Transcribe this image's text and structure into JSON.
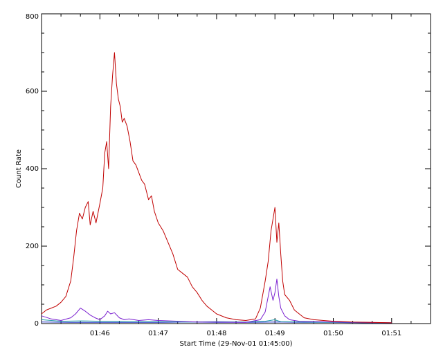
{
  "chart_data": {
    "type": "line",
    "title": "",
    "xlabel": "Start Time (29-Nov-01 01:45:00)",
    "ylabel": "Count Rate",
    "x_unit": "time (HH:MM, 29-Nov-01)",
    "xlim": [
      "01:45:00",
      "01:51:40"
    ],
    "ylim": [
      0,
      800
    ],
    "y_ticks": [
      0,
      200,
      400,
      600,
      800
    ],
    "x_ticks": [
      "01:46",
      "01:47",
      "01:48",
      "01:49",
      "01:50",
      "01:51"
    ],
    "grid": false,
    "series": [
      {
        "color": "#c00000",
        "points": [
          [
            "01:45:00",
            25
          ],
          [
            "01:45:05",
            35
          ],
          [
            "01:45:10",
            40
          ],
          [
            "01:45:15",
            45
          ],
          [
            "01:45:20",
            55
          ],
          [
            "01:45:25",
            70
          ],
          [
            "01:45:30",
            110
          ],
          [
            "01:45:33",
            170
          ],
          [
            "01:45:36",
            240
          ],
          [
            "01:45:39",
            285
          ],
          [
            "01:45:42",
            270
          ],
          [
            "01:45:45",
            300
          ],
          [
            "01:45:48",
            315
          ],
          [
            "01:45:50",
            255
          ],
          [
            "01:45:53",
            290
          ],
          [
            "01:45:56",
            260
          ],
          [
            "01:46:00",
            310
          ],
          [
            "01:46:03",
            350
          ],
          [
            "01:46:05",
            440
          ],
          [
            "01:46:07",
            470
          ],
          [
            "01:46:09",
            400
          ],
          [
            "01:46:11",
            560
          ],
          [
            "01:46:13",
            640
          ],
          [
            "01:46:15",
            700
          ],
          [
            "01:46:17",
            620
          ],
          [
            "01:46:19",
            580
          ],
          [
            "01:46:21",
            560
          ],
          [
            "01:46:23",
            520
          ],
          [
            "01:46:25",
            530
          ],
          [
            "01:46:28",
            510
          ],
          [
            "01:46:31",
            470
          ],
          [
            "01:46:34",
            420
          ],
          [
            "01:46:37",
            410
          ],
          [
            "01:46:40",
            390
          ],
          [
            "01:46:43",
            370
          ],
          [
            "01:46:46",
            360
          ],
          [
            "01:46:50",
            320
          ],
          [
            "01:46:53",
            330
          ],
          [
            "01:46:56",
            290
          ],
          [
            "01:47:00",
            260
          ],
          [
            "01:47:05",
            240
          ],
          [
            "01:47:10",
            210
          ],
          [
            "01:47:15",
            180
          ],
          [
            "01:47:20",
            140
          ],
          [
            "01:47:25",
            130
          ],
          [
            "01:47:30",
            120
          ],
          [
            "01:47:35",
            95
          ],
          [
            "01:47:40",
            80
          ],
          [
            "01:47:45",
            60
          ],
          [
            "01:47:50",
            45
          ],
          [
            "01:47:55",
            35
          ],
          [
            "01:48:00",
            25
          ],
          [
            "01:48:10",
            15
          ],
          [
            "01:48:20",
            10
          ],
          [
            "01:48:30",
            8
          ],
          [
            "01:48:40",
            12
          ],
          [
            "01:48:45",
            40
          ],
          [
            "01:48:50",
            110
          ],
          [
            "01:48:53",
            160
          ],
          [
            "01:48:56",
            240
          ],
          [
            "01:48:58",
            270
          ],
          [
            "01:49:00",
            300
          ],
          [
            "01:49:02",
            210
          ],
          [
            "01:49:04",
            260
          ],
          [
            "01:49:06",
            180
          ],
          [
            "01:49:08",
            110
          ],
          [
            "01:49:10",
            75
          ],
          [
            "01:49:15",
            60
          ],
          [
            "01:49:20",
            35
          ],
          [
            "01:49:25",
            25
          ],
          [
            "01:49:30",
            15
          ],
          [
            "01:49:40",
            10
          ],
          [
            "01:49:50",
            8
          ],
          [
            "01:50:00",
            6
          ],
          [
            "01:50:20",
            4
          ],
          [
            "01:50:40",
            3
          ],
          [
            "01:51:00",
            2
          ]
        ]
      },
      {
        "color": "#7a1fd0",
        "points": [
          [
            "01:45:00",
            20
          ],
          [
            "01:45:10",
            12
          ],
          [
            "01:45:20",
            8
          ],
          [
            "01:45:30",
            15
          ],
          [
            "01:45:35",
            25
          ],
          [
            "01:45:40",
            40
          ],
          [
            "01:45:45",
            32
          ],
          [
            "01:45:50",
            22
          ],
          [
            "01:45:55",
            15
          ],
          [
            "01:46:00",
            10
          ],
          [
            "01:46:05",
            20
          ],
          [
            "01:46:08",
            32
          ],
          [
            "01:46:11",
            25
          ],
          [
            "01:46:15",
            28
          ],
          [
            "01:46:20",
            15
          ],
          [
            "01:46:25",
            10
          ],
          [
            "01:46:30",
            12
          ],
          [
            "01:46:40",
            8
          ],
          [
            "01:46:50",
            10
          ],
          [
            "01:47:00",
            8
          ],
          [
            "01:47:20",
            6
          ],
          [
            "01:47:40",
            4
          ],
          [
            "01:48:00",
            4
          ],
          [
            "01:48:30",
            3
          ],
          [
            "01:48:45",
            10
          ],
          [
            "01:48:50",
            30
          ],
          [
            "01:48:55",
            95
          ],
          [
            "01:48:58",
            60
          ],
          [
            "01:49:00",
            80
          ],
          [
            "01:49:02",
            115
          ],
          [
            "01:49:04",
            70
          ],
          [
            "01:49:06",
            40
          ],
          [
            "01:49:10",
            20
          ],
          [
            "01:49:15",
            10
          ],
          [
            "01:49:25",
            6
          ],
          [
            "01:50:00",
            4
          ],
          [
            "01:50:30",
            3
          ],
          [
            "01:51:00",
            2
          ]
        ]
      },
      {
        "color": "#1f9aa8",
        "points": [
          [
            "01:45:00",
            10
          ],
          [
            "01:45:10",
            8
          ],
          [
            "01:45:20",
            6
          ],
          [
            "01:45:40",
            7
          ],
          [
            "01:46:00",
            6
          ],
          [
            "01:46:30",
            5
          ],
          [
            "01:47:00",
            5
          ],
          [
            "01:47:30",
            4
          ],
          [
            "01:48:00",
            5
          ],
          [
            "01:48:30",
            4
          ],
          [
            "01:48:50",
            6
          ],
          [
            "01:49:00",
            10
          ],
          [
            "01:49:02",
            8
          ],
          [
            "01:49:06",
            5
          ],
          [
            "01:49:30",
            4
          ],
          [
            "01:50:00",
            3
          ],
          [
            "01:50:30",
            3
          ],
          [
            "01:51:00",
            2
          ]
        ]
      },
      {
        "color": "#2030c0",
        "points": [
          [
            "01:45:00",
            4
          ],
          [
            "01:45:30",
            3
          ],
          [
            "01:46:00",
            3
          ],
          [
            "01:46:30",
            3
          ],
          [
            "01:47:00",
            3
          ],
          [
            "01:47:30",
            4
          ],
          [
            "01:48:00",
            3
          ],
          [
            "01:48:30",
            3
          ],
          [
            "01:49:00",
            4
          ],
          [
            "01:49:30",
            3
          ],
          [
            "01:50:00",
            3
          ],
          [
            "01:50:30",
            2
          ],
          [
            "01:51:00",
            2
          ]
        ]
      }
    ]
  }
}
